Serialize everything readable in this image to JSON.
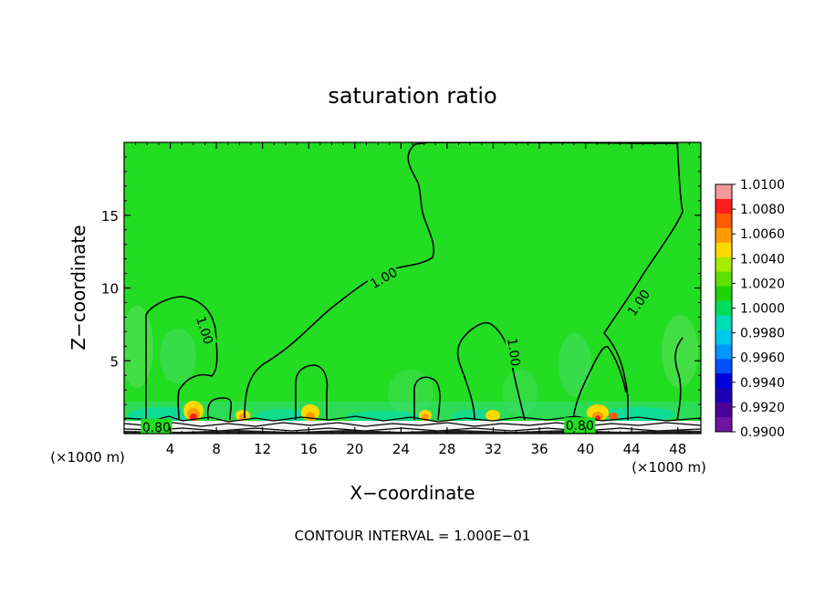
{
  "chart_data": {
    "type": "contour",
    "title": "saturation ratio",
    "xlabel": "X−coordinate",
    "ylabel": "Z−coordinate",
    "x_unit_left": "(×1000 m)",
    "x_unit_right": "(×1000 m)",
    "xlim": [
      0,
      50
    ],
    "ylim": [
      0,
      20
    ],
    "x_ticks": [
      4,
      8,
      12,
      16,
      20,
      24,
      28,
      32,
      36,
      40,
      44,
      48
    ],
    "y_ticks": [
      5,
      10,
      15
    ],
    "footer": "CONTOUR INTERVAL = 1.000E−01",
    "contour_labels": [
      {
        "text": "1.00",
        "x": 22.5,
        "y": 10.7,
        "angle": -30
      },
      {
        "text": "1.00",
        "x": 7.0,
        "y": 7.1,
        "angle": 72
      },
      {
        "text": "1.00",
        "x": 33.8,
        "y": 5.6,
        "angle": 82
      },
      {
        "text": "1.00",
        "x": 44.6,
        "y": 9.0,
        "angle": -55
      },
      {
        "text": "0.80",
        "x": 2.8,
        "y": 0.45,
        "angle": 0
      },
      {
        "text": "0.80",
        "x": 39.5,
        "y": 0.55,
        "angle": 0
      }
    ],
    "colorbar": {
      "labels": [
        "1.0100",
        "1.0080",
        "1.0060",
        "1.0040",
        "1.0020",
        "1.0000",
        "0.9980",
        "0.9960",
        "0.9940",
        "0.9920",
        "0.9900"
      ],
      "colors": [
        "#f49a9a",
        "#ff1e1e",
        "#ff5a00",
        "#ff9a00",
        "#ffd800",
        "#a8ec00",
        "#5de000",
        "#1ed400",
        "#00dc5a",
        "#00dcb4",
        "#00c8e8",
        "#0096ff",
        "#0050ff",
        "#0000dc",
        "#1e00b4",
        "#4b0096",
        "#6e14a0"
      ]
    },
    "colors": {
      "background_field": "#22dd22",
      "contour_line": "#000000"
    }
  }
}
